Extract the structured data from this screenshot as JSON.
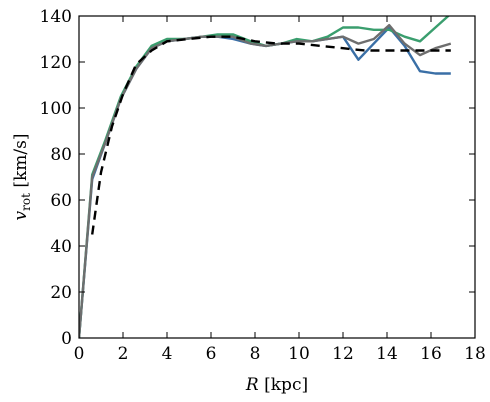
{
  "chart_data": {
    "type": "line",
    "xlabel_italic": "R",
    "xlabel_rest": " [kpc]",
    "ylabel_main": "v",
    "ylabel_sub": "rot",
    "ylabel_rest": " [km/s]",
    "xlim": [
      0,
      18
    ],
    "ylim": [
      0,
      140
    ],
    "xticks": [
      0,
      2,
      4,
      6,
      8,
      10,
      12,
      14,
      16,
      18
    ],
    "yticks": [
      0,
      20,
      40,
      60,
      80,
      100,
      120,
      140
    ],
    "grid": false,
    "series": [
      {
        "color": "#3a6fa6",
        "dash": "",
        "x": [
          0,
          0.6,
          1.2,
          1.9,
          2.6,
          3.3,
          4.0,
          4.8,
          5.6,
          6.3,
          7.0,
          7.8,
          8.5,
          9.2,
          9.9,
          10.6,
          11.3,
          12.0,
          12.7,
          13.4,
          14.1,
          14.8,
          15.5,
          16.2,
          16.9
        ],
        "y": [
          0,
          69,
          85,
          104,
          117,
          126,
          129,
          130,
          131,
          131,
          130,
          128,
          127,
          128,
          129,
          129,
          130,
          131,
          121,
          128,
          135,
          127,
          116,
          115,
          115
        ]
      },
      {
        "color": "#3a9e6e",
        "dash": "",
        "x": [
          0,
          0.6,
          1.2,
          1.9,
          2.6,
          3.3,
          4.0,
          4.8,
          5.6,
          6.3,
          7.0,
          7.8,
          8.5,
          9.2,
          9.9,
          10.6,
          11.3,
          12.0,
          12.7,
          13.4,
          14.1,
          14.8,
          15.5,
          16.2,
          16.9
        ],
        "y": [
          0,
          71,
          86,
          105,
          118,
          127,
          130,
          130,
          131,
          132,
          132,
          129,
          127,
          128,
          130,
          129,
          131,
          135,
          135,
          134,
          134,
          131,
          129,
          135,
          141
        ]
      },
      {
        "color": "#6e6e6e",
        "dash": "",
        "x": [
          0,
          0.6,
          1.2,
          1.9,
          2.6,
          3.3,
          4.0,
          4.8,
          5.6,
          6.3,
          7.0,
          7.8,
          8.5,
          9.2,
          9.9,
          10.6,
          11.3,
          12.0,
          12.7,
          13.4,
          14.1,
          14.8,
          15.5,
          16.2,
          16.9
        ],
        "y": [
          0,
          70,
          85,
          104,
          117,
          126,
          129,
          130,
          131,
          131,
          131,
          128,
          127,
          128,
          129,
          129,
          130,
          131,
          128,
          130,
          136,
          128,
          123,
          126,
          128
        ]
      },
      {
        "color": "#000000",
        "dash": "9,6",
        "x": [
          0.6,
          1.0,
          1.5,
          2.0,
          2.6,
          3.3,
          4.0,
          5.0,
          6.0,
          7.0,
          8.0,
          9.0,
          10.0,
          11.0,
          12.0,
          13.0,
          14.0,
          15.0,
          16.0,
          16.9
        ],
        "y": [
          45,
          72,
          92,
          106,
          119,
          125,
          129,
          130,
          131,
          131,
          129,
          128,
          128,
          127,
          126,
          125,
          125,
          125,
          125,
          125
        ]
      }
    ]
  }
}
